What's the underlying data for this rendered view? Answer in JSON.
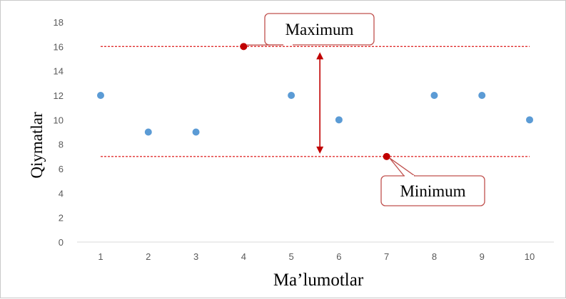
{
  "chart_data": {
    "type": "scatter",
    "title": "",
    "xlabel": "Ma’lumotlar",
    "ylabel": "Qiymatlar",
    "xlim": [
      0.5,
      10.5
    ],
    "ylim": [
      0,
      18
    ],
    "x_ticks": [
      1,
      2,
      3,
      4,
      5,
      6,
      7,
      8,
      9,
      10
    ],
    "y_ticks": [
      0,
      2,
      4,
      6,
      8,
      10,
      12,
      14,
      16,
      18
    ],
    "grid": false,
    "series": [
      {
        "x": [
          1,
          2,
          3,
          4,
          5,
          6,
          7,
          8,
          9,
          10
        ],
        "y": [
          12,
          9,
          9,
          16,
          12,
          10,
          7,
          12,
          12,
          10
        ]
      }
    ],
    "reference_lines": [
      {
        "label": "Maximum",
        "y": 16,
        "x_range": [
          1,
          10
        ]
      },
      {
        "label": "Minimum",
        "y": 7,
        "x_range": [
          1,
          10
        ]
      }
    ],
    "highlight_points": [
      {
        "label": "Maximum",
        "x": 4,
        "y": 16
      },
      {
        "label": "Minimum",
        "x": 7,
        "y": 7
      }
    ],
    "range_arrow": {
      "x": 5.6,
      "y_from": 7,
      "y_to": 16
    },
    "colors": {
      "point": "#5b9bd5",
      "highlight": "#c00000",
      "reference": "#e03030",
      "callout_border": "#c0504d"
    }
  }
}
